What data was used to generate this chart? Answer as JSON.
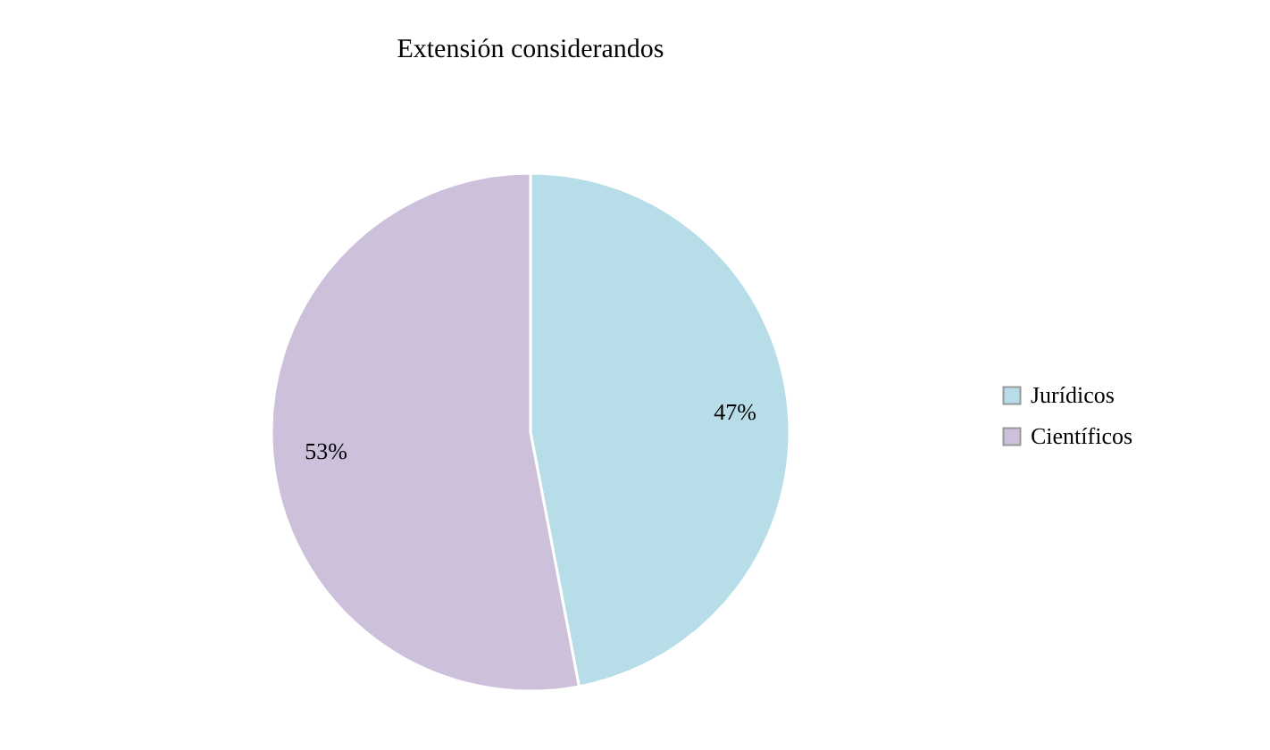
{
  "chart_data": {
    "type": "pie",
    "title": "Extensión considerandos",
    "categories": [
      "Jurídicos",
      "Científicos"
    ],
    "values": [
      47,
      53
    ],
    "colors": [
      "#b7dde8",
      "#ccc0da"
    ],
    "value_labels": [
      "47%",
      "53%"
    ],
    "legend": "right"
  }
}
